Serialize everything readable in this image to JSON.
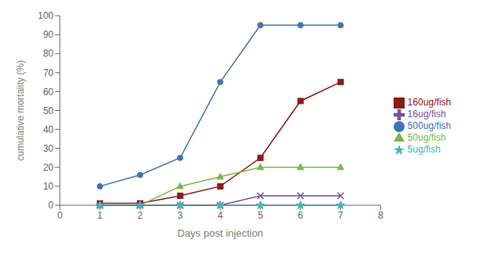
{
  "chart_data": {
    "type": "line",
    "x": [
      1,
      2,
      3,
      4,
      5,
      6,
      7
    ],
    "series": [
      {
        "name": "500ug/fish",
        "color": "#4472B8",
        "marker": "circle",
        "values": [
          10,
          16,
          25,
          65,
          95,
          95,
          95
        ]
      },
      {
        "name": "160ug/fish",
        "color": "#8B1A1A",
        "marker": "square",
        "values": [
          1,
          1,
          5,
          10,
          25,
          55,
          65
        ]
      },
      {
        "name": "50ug/fish",
        "color": "#7AB648",
        "marker": "triangle",
        "values": [
          0,
          0,
          10,
          15,
          20,
          20,
          20
        ]
      },
      {
        "name": "16ug/fish",
        "color": "#7B4FA0",
        "marker": "x",
        "values": [
          0,
          0,
          0,
          0,
          5,
          5,
          5
        ]
      },
      {
        "name": "5ug/fish",
        "color": "#4BAFC0",
        "marker": "star",
        "values": [
          0,
          0,
          0,
          0,
          0,
          0,
          0
        ]
      }
    ],
    "xlim": [
      0,
      8
    ],
    "ylim": [
      0,
      100
    ],
    "xticks": [
      0,
      1,
      2,
      3,
      4,
      5,
      6,
      7,
      8
    ],
    "yticks": [
      0,
      10,
      20,
      30,
      40,
      50,
      60,
      70,
      80,
      90,
      100
    ],
    "xlabel": "Days post injection",
    "ylabel": "cumulative mortality (%)",
    "grid": false,
    "legend": "right"
  }
}
